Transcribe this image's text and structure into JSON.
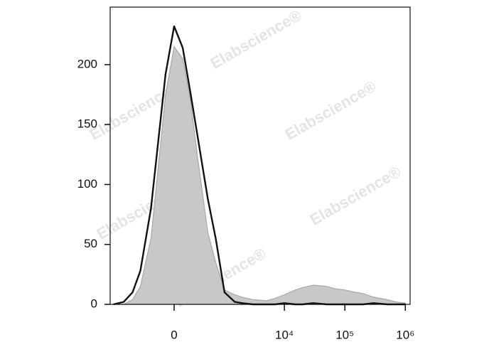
{
  "chart_data": {
    "type": "area",
    "x": [
      -1500,
      -1000,
      -700,
      -500,
      -300,
      -200,
      -100,
      0,
      100,
      200,
      300,
      500,
      700,
      1000,
      1500,
      2000,
      3000,
      5000,
      7000,
      10000,
      15000,
      20000,
      30000,
      50000,
      70000,
      100000,
      150000,
      200000,
      300000,
      500000,
      700000,
      1000000
    ],
    "series": [
      {
        "color": "#c8c8c8",
        "fill": true,
        "values": [
          0,
          0,
          4,
          15,
          55,
          110,
          175,
          215,
          205,
          170,
          125,
          60,
          35,
          12,
          8,
          6,
          4,
          3,
          5,
          8,
          12,
          14,
          16,
          15,
          13,
          12,
          10,
          9,
          6,
          4,
          2,
          1
        ]
      },
      {
        "color": "#111111",
        "fill": false,
        "values": [
          0,
          2,
          10,
          28,
          80,
          132,
          192,
          232,
          214,
          176,
          142,
          88,
          55,
          10,
          2,
          1,
          0,
          0,
          0,
          1,
          0,
          0,
          1,
          0,
          0,
          0,
          0,
          0,
          1,
          0,
          0,
          0
        ]
      }
    ],
    "xscale": "biexponential",
    "xlim": [
      -1700,
      1200000
    ],
    "xticks": [
      {
        "value": 0,
        "label": "0"
      },
      {
        "value": 10000,
        "label": "10⁴"
      },
      {
        "value": 100000,
        "label": "10⁵"
      },
      {
        "value": 1000000,
        "label": "10⁶"
      }
    ],
    "ylim": [
      0,
      248
    ],
    "yticks": [
      0,
      50,
      100,
      150,
      200
    ],
    "watermark": "Elabscience®"
  }
}
